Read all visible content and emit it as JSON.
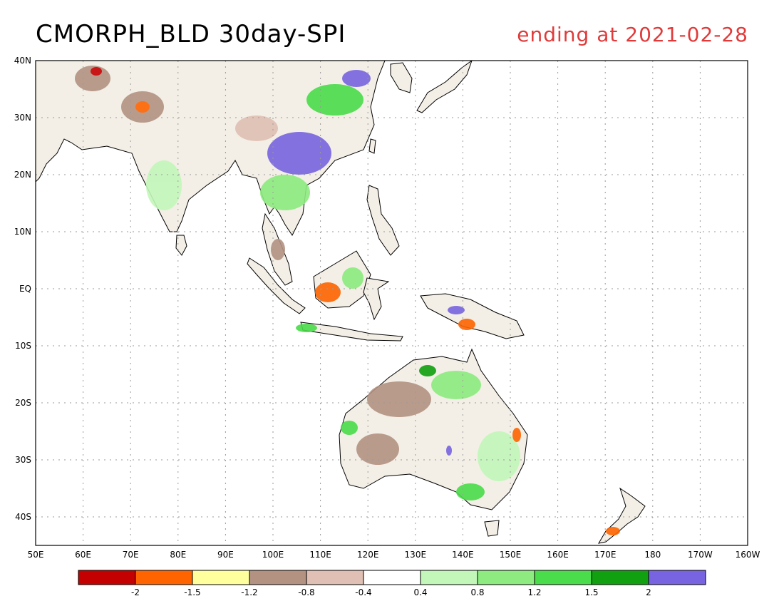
{
  "title": "CMORPH_BLD 30day-SPI",
  "subtitle": "ending at 2021-02-28",
  "colors": {
    "title": "#000000",
    "subtitle": "#e03a3a",
    "coast": "#000000",
    "grid": "#9a9a9a"
  },
  "map": {
    "lon_labels": [
      "50E",
      "60E",
      "70E",
      "80E",
      "90E",
      "100E",
      "110E",
      "120E",
      "130E",
      "140E",
      "150E",
      "160E",
      "170E",
      "180",
      "170W",
      "160W"
    ],
    "lat_labels": [
      "40N",
      "30N",
      "20N",
      "10N",
      "EQ",
      "10S",
      "20S",
      "30S",
      "40S"
    ],
    "lon_range": [
      50,
      200
    ],
    "lat_range": [
      -45,
      40
    ]
  },
  "legend": {
    "colors": [
      "#c40000",
      "#ff6400",
      "#ffff9e",
      "#b39282",
      "#e0c0b4",
      "#ffffff",
      "#c2f7b9",
      "#8deb80",
      "#4adc4a",
      "#10a010",
      "#7864e0"
    ],
    "labels": [
      "-2",
      "-1.5",
      "-1.2",
      "-0.8",
      "-0.4",
      "0.4",
      "0.8",
      "1.2",
      "1.5",
      "2"
    ]
  }
}
